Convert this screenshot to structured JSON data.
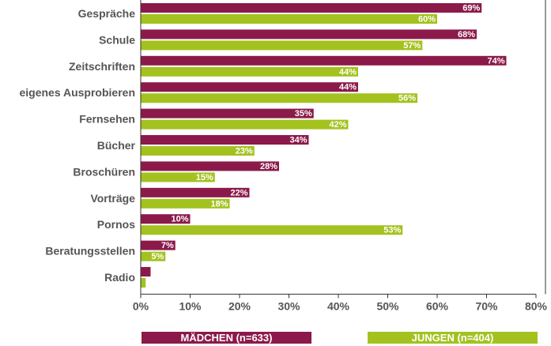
{
  "chart_data": {
    "type": "bar",
    "orientation": "horizontal",
    "categories": [
      "Gespräche",
      "Schule",
      "Zeitschriften",
      "eigenes Ausprobieren",
      "Fernsehen",
      "Bücher",
      "Broschüren",
      "Vorträge",
      "Pornos",
      "Beratungsstellen",
      "Radio"
    ],
    "series": [
      {
        "name": "MÄDCHEN (n=633)",
        "color": "#8b1a4a",
        "values": [
          69,
          68,
          74,
          44,
          35,
          34,
          28,
          22,
          10,
          7,
          2
        ],
        "labels": [
          "69%",
          "68%",
          "74%",
          "44%",
          "35%",
          "34%",
          "28%",
          "22%",
          "10%",
          "7%",
          ""
        ]
      },
      {
        "name": "JUNGEN (n=404)",
        "color": "#a3c21f",
        "values": [
          60,
          57,
          44,
          56,
          42,
          23,
          15,
          18,
          53,
          5,
          1
        ],
        "labels": [
          "60%",
          "57%",
          "44%",
          "56%",
          "42%",
          "23%",
          "15%",
          "18%",
          "53%",
          "5%",
          ""
        ]
      }
    ],
    "xlim": [
      0,
      80
    ],
    "xticks": [
      "0%",
      "10%",
      "20%",
      "30%",
      "40%",
      "50%",
      "60%",
      "70%",
      "80%"
    ],
    "grid": false,
    "legend_position": "bottom"
  }
}
